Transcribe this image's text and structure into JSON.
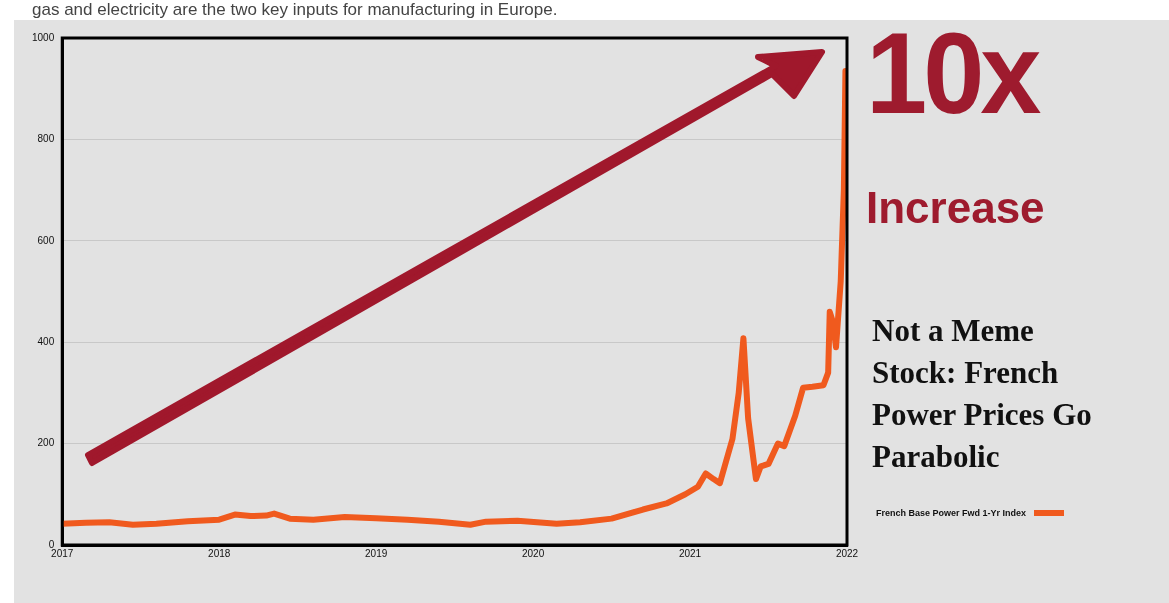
{
  "chart_data": {
    "type": "line",
    "title": "Not a Meme Stock: French Power Prices Go Parabolic",
    "annotations": [
      "gas and electricity are the two key inputs for manufacturing in Europe.",
      "10x",
      "Increase"
    ],
    "xlim": [
      2017,
      2022
    ],
    "xticks": [
      2017,
      2018,
      2019,
      2020,
      2021,
      2022
    ],
    "ylim": [
      0,
      1000
    ],
    "yticks": [
      0,
      200,
      400,
      600,
      800,
      1000
    ],
    "grid": "y",
    "legend": "bottom right",
    "marker": "none",
    "line_style": "solid",
    "series": [
      {
        "name": "French Base Power Fwd 1-Yr Index",
        "color": "#f05a1e",
        "x": [
          2017.0,
          2017.15,
          2017.3,
          2017.45,
          2017.6,
          2017.8,
          2018.0,
          2018.1,
          2018.2,
          2018.3,
          2018.35,
          2018.45,
          2018.6,
          2018.8,
          2019.0,
          2019.2,
          2019.4,
          2019.6,
          2019.7,
          2019.9,
          2020.15,
          2020.3,
          2020.5,
          2020.7,
          2020.85,
          2020.97,
          2021.05,
          2021.1,
          2021.15,
          2021.19,
          2021.27,
          2021.31,
          2021.34,
          2021.37,
          2021.42,
          2021.45,
          2021.5,
          2021.56,
          2021.6,
          2021.67,
          2021.72,
          2021.78,
          2021.85,
          2021.88,
          2021.89,
          2021.91,
          2021.93,
          2021.96,
          2021.98,
          2021.99
        ],
        "values": [
          42,
          44,
          45,
          40,
          42,
          47,
          50,
          60,
          57,
          58,
          62,
          52,
          50,
          55,
          53,
          50,
          46,
          40,
          46,
          48,
          42,
          45,
          52,
          70,
          82,
          100,
          115,
          141,
          130,
          122,
          209,
          300,
          408,
          250,
          130,
          155,
          160,
          200,
          195,
          255,
          310,
          312,
          315,
          340,
          460,
          440,
          390,
          520,
          700,
          935
        ]
      }
    ]
  }
}
